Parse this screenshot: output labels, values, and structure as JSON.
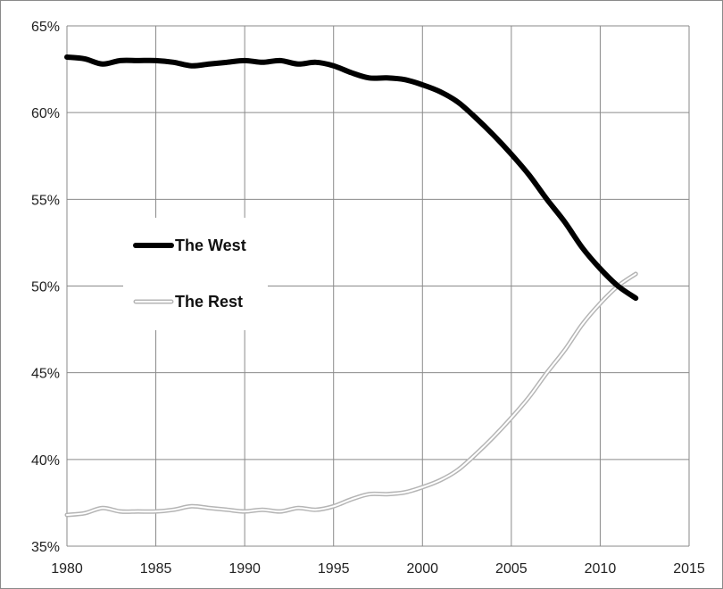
{
  "chart_data": {
    "type": "line",
    "title": "",
    "xlabel": "",
    "ylabel": "",
    "xlim": [
      1980,
      2015
    ],
    "ylim": [
      35,
      65
    ],
    "x_ticks": [
      1980,
      1985,
      1990,
      1995,
      2000,
      2005,
      2010,
      2015
    ],
    "x_tick_labels": [
      "1980",
      "1985",
      "1990",
      "1995",
      "2000",
      "2005",
      "2010",
      "2015"
    ],
    "y_ticks": [
      35,
      40,
      45,
      50,
      55,
      60,
      65
    ],
    "y_tick_labels": [
      "35%",
      "40%",
      "45%",
      "50%",
      "55%",
      "60%",
      "65%"
    ],
    "grid": true,
    "legend_position": "center-left",
    "x": [
      1980,
      1981,
      1982,
      1983,
      1984,
      1985,
      1986,
      1987,
      1988,
      1989,
      1990,
      1991,
      1992,
      1993,
      1994,
      1995,
      1996,
      1997,
      1998,
      1999,
      2000,
      2001,
      2002,
      2003,
      2004,
      2005,
      2006,
      2007,
      2008,
      2009,
      2010,
      2011,
      2012
    ],
    "series": [
      {
        "name": "The West",
        "color": "#000000",
        "style": "solid",
        "values": [
          63.2,
          63.1,
          62.8,
          63.0,
          63.0,
          63.0,
          62.9,
          62.7,
          62.8,
          62.9,
          63.0,
          62.9,
          63.0,
          62.8,
          62.9,
          62.7,
          62.3,
          62.0,
          62.0,
          61.9,
          61.6,
          61.2,
          60.6,
          59.7,
          58.7,
          57.6,
          56.4,
          55.0,
          53.7,
          52.2,
          51.0,
          50.0,
          49.3
        ]
      },
      {
        "name": "The Rest",
        "color": "#b5b5b5",
        "style": "double",
        "values": [
          36.8,
          36.9,
          37.2,
          37.0,
          37.0,
          37.0,
          37.1,
          37.3,
          37.2,
          37.1,
          37.0,
          37.1,
          37.0,
          37.2,
          37.1,
          37.3,
          37.7,
          38.0,
          38.0,
          38.1,
          38.4,
          38.8,
          39.4,
          40.3,
          41.3,
          42.4,
          43.6,
          45.0,
          46.3,
          47.8,
          49.0,
          50.0,
          50.7
        ]
      }
    ]
  }
}
